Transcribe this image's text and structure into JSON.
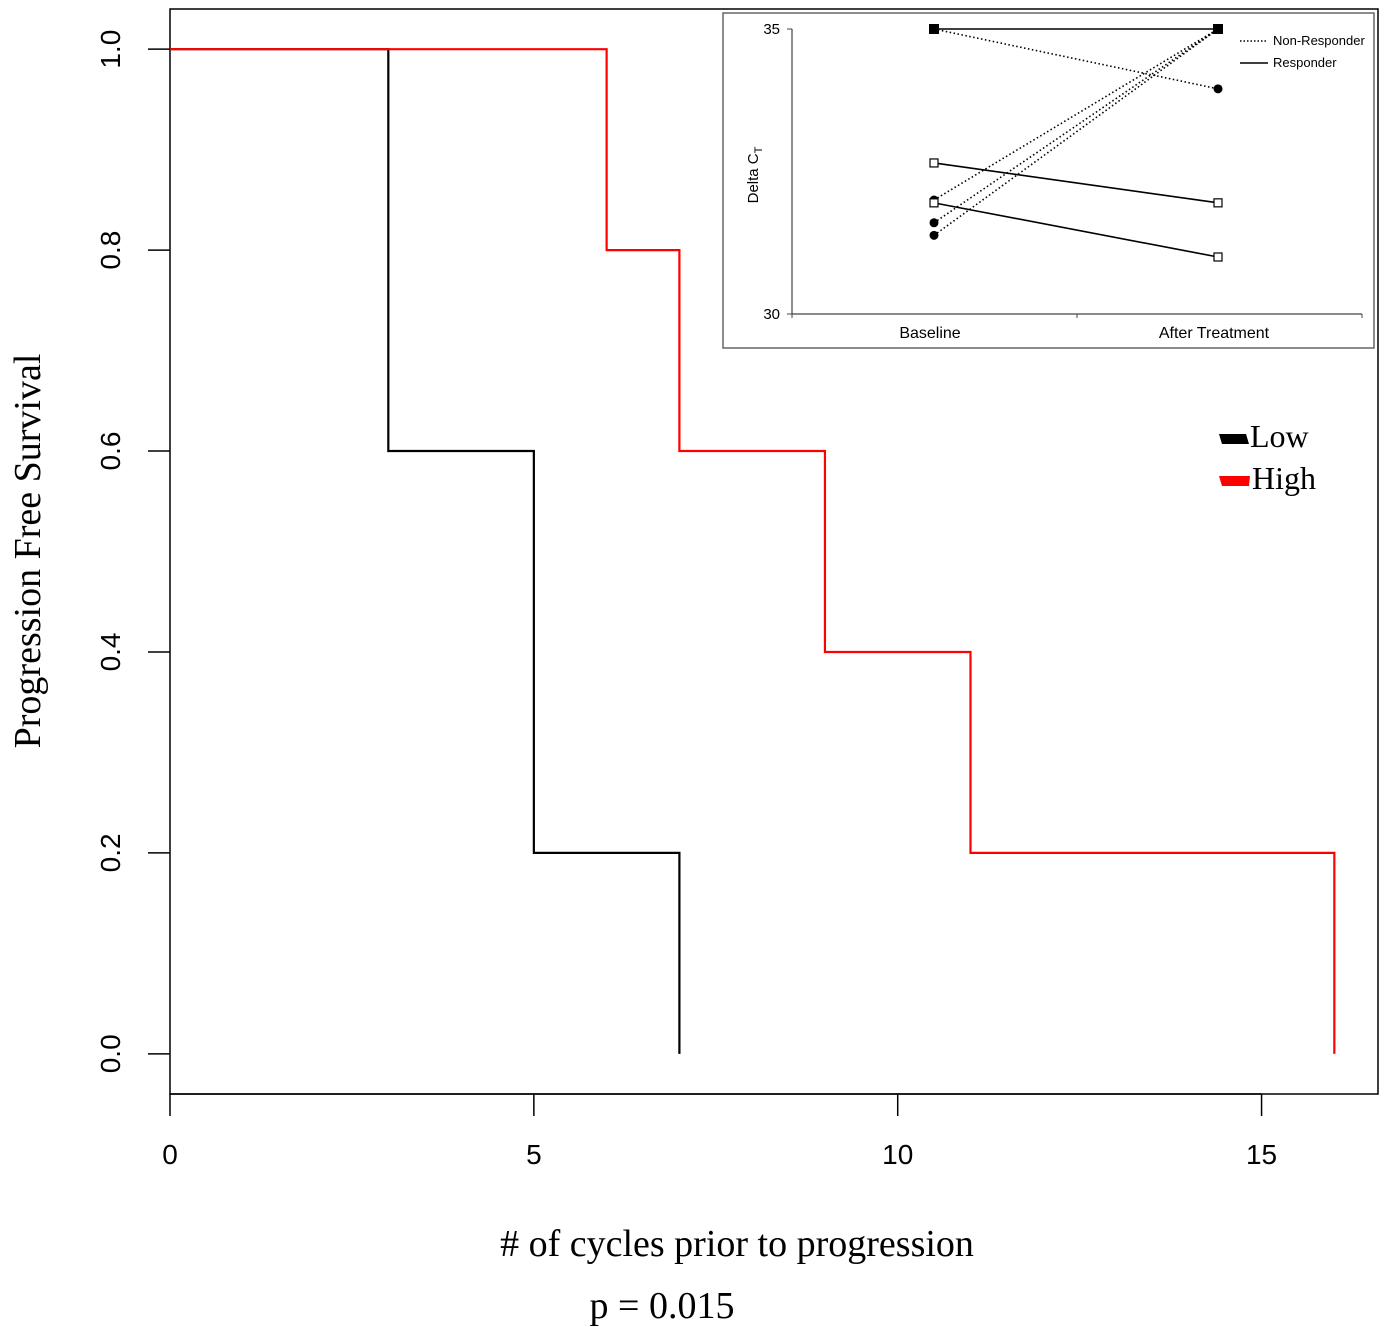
{
  "chart_data": [
    {
      "type": "line",
      "subtype": "step",
      "xlabel": "# of cycles prior to progression",
      "ylabel": "Progression Free Survival",
      "annotation": "p = 0.015",
      "xlim": [
        0,
        16.6
      ],
      "ylim": [
        -0.04,
        1.04
      ],
      "x_ticks": [
        0,
        5,
        10,
        15
      ],
      "y_ticks": [
        0.0,
        0.2,
        0.4,
        0.6,
        0.8,
        1.0
      ],
      "x_tick_labels": [
        "0",
        "5",
        "10",
        "15"
      ],
      "y_tick_labels": [
        "0.0",
        "0.2",
        "0.4",
        "0.6",
        "0.8",
        "1.0"
      ],
      "grid": false,
      "legend_position": "right",
      "series": [
        {
          "name": "Low",
          "color": "#000000",
          "x": [
            0,
            3,
            5,
            7,
            7
          ],
          "y": [
            1.0,
            0.6,
            0.2,
            0.2,
            0.0
          ]
        },
        {
          "name": "High",
          "color": "#ff0000",
          "x": [
            0,
            6,
            7,
            9,
            11,
            16,
            16
          ],
          "y": [
            1.0,
            0.8,
            0.6,
            0.4,
            0.2,
            0.2,
            0.0
          ]
        }
      ]
    },
    {
      "type": "line",
      "subtype": "paired-inset",
      "ylabel_main": "Delta C",
      "ylabel_sub": "T",
      "categories": [
        "Baseline",
        "After Treatment"
      ],
      "ylim": [
        30,
        35
      ],
      "y_ticks": [
        30,
        35
      ],
      "y_tick_labels": [
        "30",
        "35"
      ],
      "legend_position": "top-right",
      "legend": [
        {
          "name": "Non-Responder",
          "style": "dotted"
        },
        {
          "name": "Responder",
          "style": "solid"
        }
      ],
      "pairs": [
        {
          "group": "Responder",
          "values": [
            35.0,
            35.0
          ],
          "marker": "filled-square"
        },
        {
          "group": "Non-Responder",
          "values": [
            35.0,
            33.95
          ],
          "marker": "circle"
        },
        {
          "group": "Non-Responder",
          "values": [
            32.0,
            35.0
          ],
          "marker": "circle"
        },
        {
          "group": "Non-Responder",
          "values": [
            31.6,
            35.0
          ],
          "marker": "circle"
        },
        {
          "group": "Non-Responder",
          "values": [
            31.38,
            35.0
          ],
          "marker": "circle"
        },
        {
          "group": "Responder",
          "values": [
            32.65,
            31.95
          ],
          "marker": "open-square"
        },
        {
          "group": "Responder",
          "values": [
            31.95,
            31.0
          ],
          "marker": "open-square"
        }
      ]
    }
  ]
}
